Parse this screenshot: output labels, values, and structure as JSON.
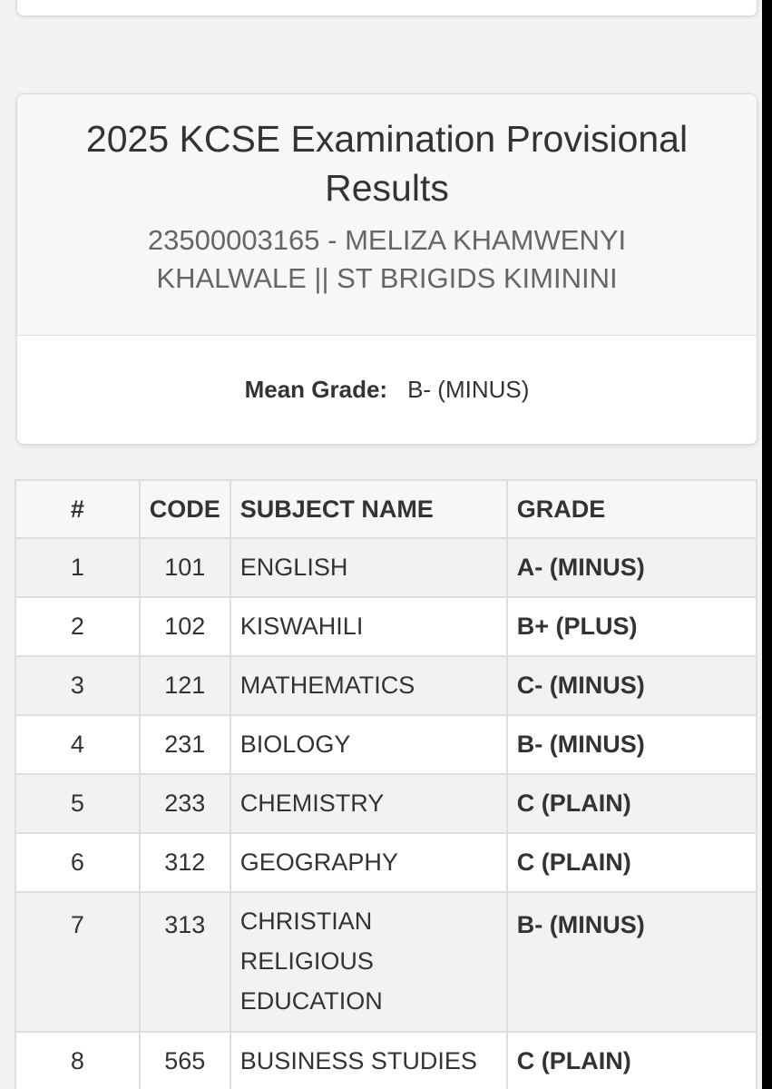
{
  "header": {
    "title": "2025 KCSE Examination Provisional Results",
    "candidate": "23500003165 - MELIZA KHAMWENYI KHALWALE || ST BRIGIDS KIMININI"
  },
  "summary": {
    "mean_grade_label": "Mean Grade:",
    "mean_grade_value": "B- (MINUS)"
  },
  "table": {
    "columns": [
      "#",
      "CODE",
      "SUBJECT NAME",
      "GRADE"
    ],
    "rows": [
      {
        "num": "1",
        "code": "101",
        "subject": "ENGLISH",
        "grade": "A- (MINUS)"
      },
      {
        "num": "2",
        "code": "102",
        "subject": "KISWAHILI",
        "grade": "B+ (PLUS)"
      },
      {
        "num": "3",
        "code": "121",
        "subject": "MATHEMATICS",
        "grade": "C- (MINUS)"
      },
      {
        "num": "4",
        "code": "231",
        "subject": "BIOLOGY",
        "grade": "B- (MINUS)"
      },
      {
        "num": "5",
        "code": "233",
        "subject": "CHEMISTRY",
        "grade": "C (PLAIN)"
      },
      {
        "num": "6",
        "code": "312",
        "subject": "GEOGRAPHY",
        "grade": "C (PLAIN)"
      },
      {
        "num": "7",
        "code": "313",
        "subject": "CHRISTIAN RELIGIOUS EDUCATION",
        "grade": "B- (MINUS)"
      },
      {
        "num": "8",
        "code": "565",
        "subject": "BUSINESS STUDIES",
        "grade": "C (PLAIN)"
      }
    ]
  },
  "colors": {
    "page_background": "#f2f2f2",
    "card_header": "#f7f7f7",
    "striped_row": "#f2f2f2",
    "border": "#dedede",
    "text": "#333333",
    "muted_text": "#666666"
  }
}
